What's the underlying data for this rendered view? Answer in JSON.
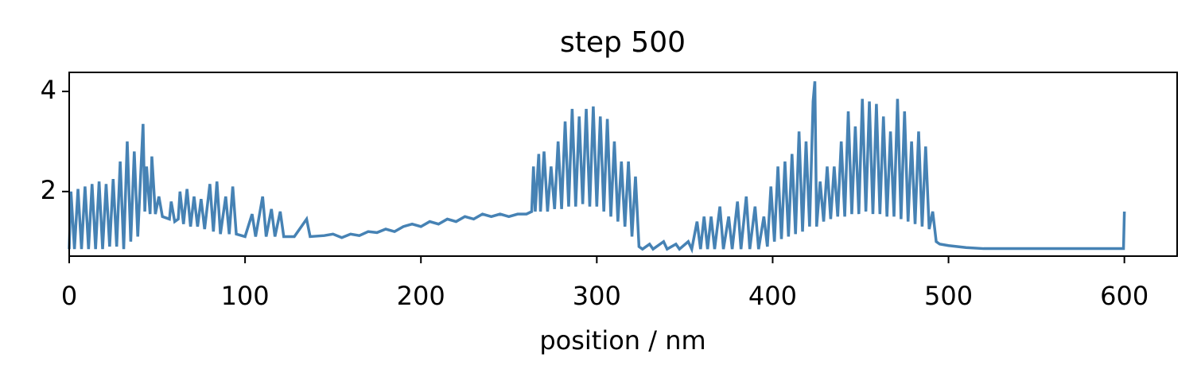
{
  "chart_data": {
    "type": "line",
    "title": "step 500",
    "x_label": "position / nm",
    "x": [
      0,
      1,
      3,
      5,
      7,
      9,
      11,
      13,
      15,
      17,
      19,
      21,
      23,
      25,
      27,
      29,
      31,
      33,
      35,
      37,
      39,
      41,
      42,
      43,
      44,
      46,
      47,
      49,
      51,
      53,
      57,
      58,
      60,
      62,
      63,
      65,
      67,
      69,
      71,
      73,
      75,
      77,
      80,
      82,
      84,
      86,
      89,
      91,
      93,
      95,
      100,
      104,
      106,
      110,
      112,
      115,
      117,
      120,
      122,
      128,
      135,
      137,
      145,
      150,
      155,
      160,
      165,
      170,
      175,
      180,
      185,
      190,
      195,
      200,
      205,
      210,
      215,
      220,
      225,
      230,
      235,
      240,
      245,
      250,
      255,
      260,
      263,
      264,
      265,
      267,
      268,
      270,
      272,
      274,
      276,
      278,
      280,
      282,
      284,
      286,
      288,
      290,
      292,
      294,
      296,
      298,
      300,
      302,
      304,
      306,
      308,
      310,
      312,
      314,
      316,
      318,
      320,
      322,
      324,
      326,
      330,
      332,
      338,
      340,
      345,
      347,
      352,
      354,
      357,
      359,
      361,
      363,
      365,
      367,
      370,
      372,
      375,
      377,
      380,
      382,
      385,
      387,
      390,
      392,
      395,
      397,
      399,
      401,
      403,
      405,
      407,
      409,
      411,
      413,
      415,
      417,
      419,
      421,
      423,
      424,
      425,
      427,
      429,
      431,
      433,
      435,
      437,
      439,
      441,
      443,
      445,
      447,
      449,
      451,
      453,
      455,
      457,
      459,
      461,
      463,
      465,
      467,
      469,
      471,
      473,
      475,
      477,
      479,
      481,
      483,
      485,
      487,
      489,
      491,
      493,
      495,
      500,
      510,
      520,
      599.5,
      600
    ],
    "series": [
      {
        "color": "#4682b4",
        "values": [
          0.85,
          2.0,
          0.85,
          2.05,
          0.85,
          2.1,
          0.85,
          2.15,
          0.85,
          2.2,
          0.85,
          2.15,
          0.9,
          2.25,
          0.9,
          2.6,
          0.85,
          3.0,
          1.0,
          2.8,
          1.1,
          2.6,
          3.35,
          1.6,
          2.5,
          1.55,
          2.7,
          1.55,
          1.9,
          1.5,
          1.45,
          1.8,
          1.4,
          1.45,
          2.0,
          1.35,
          2.05,
          1.3,
          1.9,
          1.3,
          1.85,
          1.25,
          2.15,
          1.2,
          2.2,
          1.15,
          1.9,
          1.15,
          2.1,
          1.15,
          1.1,
          1.55,
          1.1,
          1.9,
          1.1,
          1.65,
          1.1,
          1.6,
          1.1,
          1.1,
          1.45,
          1.1,
          1.12,
          1.15,
          1.08,
          1.15,
          1.12,
          1.2,
          1.18,
          1.25,
          1.2,
          1.3,
          1.35,
          1.3,
          1.4,
          1.35,
          1.45,
          1.4,
          1.5,
          1.45,
          1.55,
          1.5,
          1.55,
          1.5,
          1.55,
          1.55,
          1.6,
          2.5,
          1.6,
          2.75,
          1.6,
          2.8,
          1.6,
          2.5,
          1.65,
          3.0,
          1.65,
          3.4,
          1.7,
          3.65,
          1.7,
          3.5,
          1.75,
          3.65,
          1.7,
          3.7,
          1.7,
          3.5,
          1.6,
          3.45,
          1.5,
          3.0,
          1.4,
          2.6,
          1.3,
          2.6,
          1.1,
          2.3,
          0.9,
          0.85,
          0.95,
          0.85,
          1.0,
          0.85,
          0.95,
          0.85,
          1.0,
          0.85,
          1.4,
          0.85,
          1.5,
          0.85,
          1.5,
          0.85,
          1.7,
          0.85,
          1.5,
          0.85,
          1.8,
          0.85,
          1.9,
          0.85,
          1.7,
          0.85,
          1.5,
          0.9,
          2.1,
          1.0,
          2.5,
          1.05,
          2.6,
          1.1,
          2.75,
          1.15,
          3.2,
          1.2,
          3.0,
          1.3,
          3.8,
          4.2,
          1.3,
          2.2,
          1.4,
          2.5,
          1.45,
          2.5,
          1.5,
          3.0,
          1.5,
          3.6,
          1.55,
          3.3,
          1.55,
          3.85,
          1.6,
          3.8,
          1.55,
          3.75,
          1.55,
          3.5,
          1.5,
          3.2,
          1.5,
          3.85,
          1.45,
          3.6,
          1.4,
          3.0,
          1.35,
          3.2,
          1.3,
          2.9,
          1.25,
          1.6,
          1.0,
          0.95,
          0.92,
          0.88,
          0.86,
          0.86,
          1.6
        ]
      }
    ],
    "xlim": [
      0,
      630
    ],
    "ylim": [
      0.71,
      4.38
    ],
    "xticks": [
      0,
      100,
      200,
      300,
      400,
      500,
      600
    ],
    "yticks": [
      2,
      4
    ]
  }
}
